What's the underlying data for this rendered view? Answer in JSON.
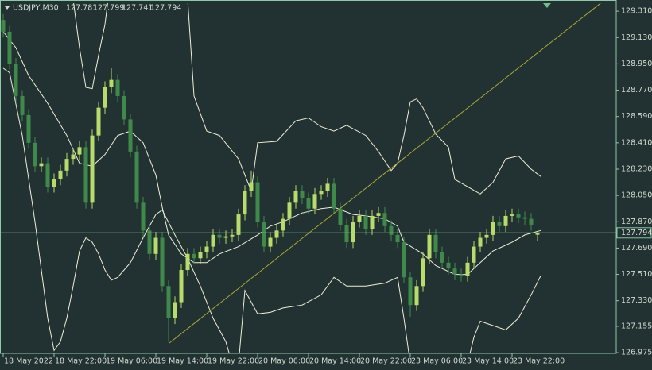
{
  "chart_data": {
    "type": "candlestick",
    "symbol": "USDJPY,M30",
    "open": [
      129.25,
      129.17,
      128.95,
      128.73,
      128.6,
      128.41,
      128.25,
      128.27,
      128.11,
      128.16,
      128.22,
      128.3,
      128.33,
      128.38,
      128.0,
      128.46,
      128.65,
      128.79,
      128.84,
      128.73,
      128.57,
      128.35,
      128.0,
      127.81,
      127.65,
      127.76,
      127.43,
      127.21,
      127.32,
      127.54,
      127.65,
      127.62,
      127.66,
      127.7,
      127.78,
      127.76,
      127.77,
      127.78,
      127.92,
      128.08,
      128.14,
      127.87,
      127.7,
      127.76,
      127.81,
      127.89,
      128.0,
      128.08,
      128.03,
      127.96,
      128.06,
      128.08,
      128.13,
      127.96,
      127.85,
      127.73,
      127.87,
      127.91,
      127.82,
      127.91,
      127.93,
      127.84,
      127.78,
      127.73,
      127.49,
      127.3,
      127.43,
      127.62,
      127.78,
      127.66,
      127.59,
      127.55,
      127.51,
      127.5,
      127.59,
      127.7,
      127.76,
      127.78,
      127.87,
      127.84,
      127.91,
      127.92,
      127.9,
      127.89,
      127.781
    ],
    "high": [
      129.29,
      129.21,
      128.99,
      128.77,
      128.64,
      128.45,
      128.31,
      128.31,
      128.2,
      128.26,
      128.34,
      128.37,
      128.42,
      128.42,
      128.5,
      128.69,
      128.83,
      128.92,
      128.88,
      128.77,
      128.61,
      128.39,
      128.04,
      127.85,
      127.8,
      127.8,
      127.47,
      127.36,
      127.58,
      127.69,
      127.69,
      127.7,
      127.74,
      127.82,
      127.82,
      127.81,
      127.82,
      127.96,
      128.12,
      128.22,
      128.18,
      127.91,
      127.8,
      127.85,
      127.93,
      128.04,
      128.12,
      128.12,
      128.07,
      128.1,
      128.12,
      128.17,
      128.17,
      128.0,
      127.89,
      127.91,
      127.95,
      127.95,
      127.95,
      127.97,
      127.97,
      127.88,
      127.82,
      127.77,
      127.53,
      127.47,
      127.66,
      127.82,
      127.82,
      127.7,
      127.63,
      127.59,
      127.55,
      127.63,
      127.74,
      127.8,
      127.82,
      127.91,
      127.91,
      127.95,
      127.96,
      127.96,
      127.94,
      127.93,
      127.799
    ],
    "low": [
      129.13,
      128.91,
      128.69,
      128.56,
      128.37,
      128.21,
      128.21,
      128.07,
      128.07,
      128.12,
      128.18,
      128.26,
      128.29,
      127.96,
      127.96,
      128.42,
      128.61,
      128.75,
      128.69,
      128.53,
      128.31,
      127.96,
      127.77,
      127.61,
      127.61,
      127.39,
      127.05,
      127.17,
      127.28,
      127.5,
      127.58,
      127.58,
      127.62,
      127.66,
      127.72,
      127.72,
      127.73,
      127.74,
      127.88,
      128.04,
      127.83,
      127.66,
      127.66,
      127.72,
      127.77,
      127.85,
      127.96,
      127.99,
      127.92,
      127.92,
      128.02,
      128.04,
      127.92,
      127.81,
      127.69,
      127.69,
      127.83,
      127.78,
      127.78,
      127.87,
      127.8,
      127.74,
      127.69,
      127.45,
      127.22,
      127.26,
      127.39,
      127.58,
      127.62,
      127.55,
      127.51,
      127.47,
      127.46,
      127.46,
      127.55,
      127.66,
      127.72,
      127.74,
      127.8,
      127.8,
      127.87,
      127.86,
      127.85,
      127.81,
      127.741
    ],
    "close": [
      129.17,
      128.95,
      128.73,
      128.6,
      128.41,
      128.25,
      128.27,
      128.11,
      128.16,
      128.22,
      128.3,
      128.33,
      128.38,
      128.0,
      128.46,
      128.65,
      128.79,
      128.84,
      128.73,
      128.57,
      128.35,
      128.0,
      127.81,
      127.65,
      127.76,
      127.43,
      127.21,
      127.32,
      127.54,
      127.65,
      127.62,
      127.66,
      127.7,
      127.78,
      127.76,
      127.77,
      127.78,
      127.92,
      128.08,
      128.14,
      127.87,
      127.7,
      127.76,
      127.81,
      127.89,
      128.0,
      128.08,
      128.03,
      127.96,
      128.06,
      128.08,
      128.13,
      127.96,
      127.85,
      127.73,
      127.87,
      127.91,
      127.82,
      127.91,
      127.93,
      127.84,
      127.78,
      127.73,
      127.49,
      127.3,
      127.43,
      127.62,
      127.78,
      127.66,
      127.59,
      127.55,
      127.51,
      127.5,
      127.59,
      127.7,
      127.76,
      127.78,
      127.87,
      127.84,
      127.91,
      127.92,
      127.9,
      127.89,
      127.85,
      127.794
    ],
    "overlays": [
      {
        "x": [
          0,
          2,
          4,
          7,
          10,
          12,
          14,
          16,
          18,
          20,
          22,
          24,
          25,
          26,
          28,
          30,
          32,
          34,
          37,
          40,
          42,
          44,
          47,
          50,
          52,
          55,
          57,
          60,
          62,
          63,
          66,
          68,
          71,
          73,
          75,
          77,
          80,
          82,
          84.5
        ],
        "values": [
          129.17,
          129.06,
          128.87,
          128.68,
          128.46,
          128.27,
          128.25,
          128.33,
          128.46,
          128.49,
          128.41,
          128.19,
          127.97,
          127.78,
          127.65,
          127.59,
          127.59,
          127.65,
          127.7,
          127.78,
          127.84,
          127.87,
          127.93,
          127.96,
          127.97,
          127.92,
          127.91,
          127.89,
          127.84,
          127.73,
          127.65,
          127.57,
          127.51,
          127.51,
          127.59,
          127.67,
          127.73,
          127.78,
          127.81
        ]
      },
      {
        "x": [
          11,
          12,
          13,
          14,
          15,
          16,
          16.5,
          29,
          30,
          32,
          34,
          37,
          39,
          40,
          43,
          46,
          48,
          50,
          52,
          54,
          57,
          59,
          61,
          62,
          63,
          64,
          65,
          66,
          68,
          70,
          71,
          73,
          75,
          77,
          79,
          81,
          83,
          84.5
        ],
        "values": [
          129.39,
          129.06,
          128.79,
          128.78,
          129.01,
          129.22,
          129.39,
          129.39,
          128.73,
          128.49,
          128.46,
          128.3,
          128.08,
          128.41,
          128.42,
          128.56,
          128.58,
          128.52,
          128.49,
          128.53,
          128.46,
          128.35,
          128.22,
          128.27,
          128.46,
          128.69,
          128.71,
          128.65,
          128.47,
          128.38,
          128.16,
          128.11,
          128.06,
          128.14,
          128.3,
          128.32,
          128.23,
          128.18
        ]
      },
      {
        "x": [
          0,
          1,
          3,
          5,
          7,
          8,
          9,
          10,
          11,
          12,
          13,
          14,
          15,
          16,
          17,
          18,
          20,
          22,
          24,
          25,
          27,
          29,
          31,
          33,
          35,
          36,
          37,
          38,
          40,
          42,
          44,
          47,
          50,
          52,
          54,
          57,
          60,
          62,
          63,
          64,
          73,
          74,
          75,
          77,
          79,
          81,
          83,
          84.5
        ],
        "values": [
          128.92,
          128.89,
          128.46,
          127.87,
          127.21,
          126.99,
          127.05,
          127.21,
          127.43,
          127.67,
          127.76,
          127.73,
          127.65,
          127.54,
          127.47,
          127.49,
          127.59,
          127.76,
          127.92,
          127.95,
          127.78,
          127.62,
          127.43,
          127.21,
          127.05,
          126.9,
          126.9,
          127.4,
          127.24,
          127.25,
          127.28,
          127.3,
          127.37,
          127.49,
          127.43,
          127.43,
          127.45,
          127.49,
          127.21,
          126.9,
          126.9,
          127.08,
          127.19,
          127.16,
          127.13,
          127.21,
          127.37,
          127.5
        ]
      }
    ],
    "trendline": {
      "x": [
        26.1,
        93.9
      ],
      "values": [
        127.04,
        129.364
      ]
    },
    "xlim": [
      -0.5,
      96.375
    ],
    "ylim": [
      126.97,
      129.365
    ],
    "yticks": [
      {
        "value": 129.31,
        "label": "129.310"
      },
      {
        "value": 129.13,
        "label": "129.130"
      },
      {
        "value": 128.95,
        "label": "128.950"
      },
      {
        "value": 128.77,
        "label": "128.770"
      },
      {
        "value": 128.59,
        "label": "128.590"
      },
      {
        "value": 128.41,
        "label": "128.410"
      },
      {
        "value": 128.23,
        "label": "128.230"
      },
      {
        "value": 128.05,
        "label": "128.050"
      },
      {
        "value": 127.87,
        "label": "127.870"
      },
      {
        "value": 127.69,
        "label": "127.690"
      },
      {
        "value": 127.51,
        "label": "127.510"
      },
      {
        "value": 127.33,
        "label": "127.330"
      },
      {
        "value": 127.155,
        "label": "127.155"
      },
      {
        "value": 126.975,
        "label": "126.975"
      }
    ],
    "xticks": [
      {
        "value": 0,
        "label": "18 May 2022"
      },
      {
        "value": 8,
        "label": "18 May 22:00"
      },
      {
        "value": 16,
        "label": "19 May 06:00"
      },
      {
        "value": 24,
        "label": "19 May 14:00"
      },
      {
        "value": 32,
        "label": "19 May 22:00"
      },
      {
        "value": 40,
        "label": "20 May 06:00"
      },
      {
        "value": 48,
        "label": "20 May 14:00"
      },
      {
        "value": 56,
        "label": "20 May 22:00"
      },
      {
        "value": 64,
        "label": "23 May 06:00"
      },
      {
        "value": 72,
        "label": "23 May 14:00"
      },
      {
        "value": 80,
        "label": "23 May 22:00"
      }
    ],
    "colors": {
      "up": "#b8dc6c",
      "down": "#3f8a4a",
      "overlay": "#eef0d8",
      "trendline": "#a8a838",
      "price_line": "#86c4a2",
      "axis": "#8fc9aa"
    }
  }
}
